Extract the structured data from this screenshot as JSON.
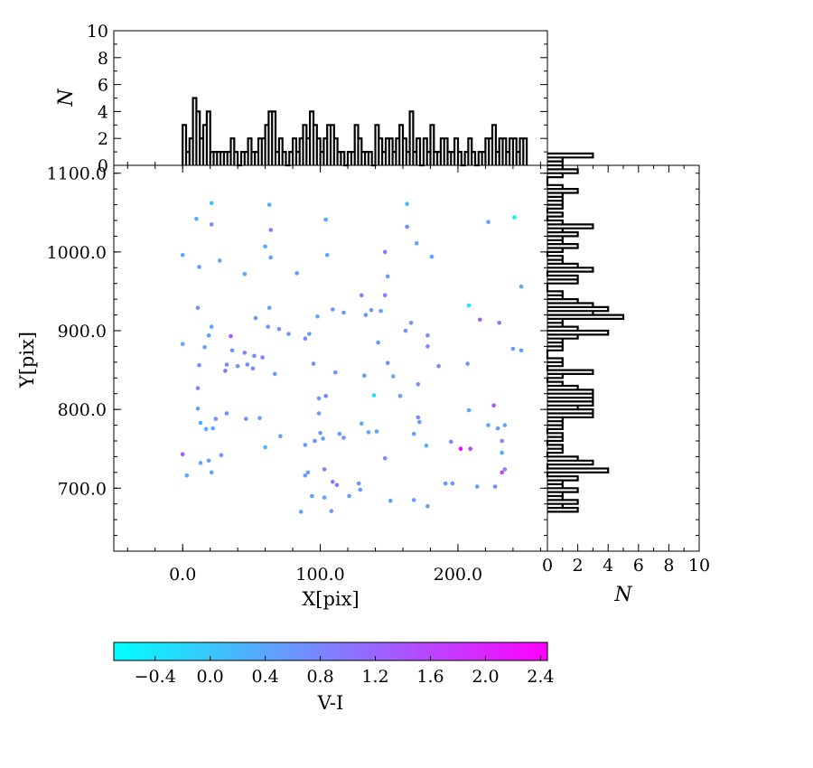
{
  "chart_data": [
    {
      "type": "scatter",
      "xlabel": "X[pix]",
      "ylabel": "Y[pix]",
      "xlim": [
        -50,
        265
      ],
      "ylim": [
        620,
        1110
      ],
      "xticks": [
        "0.0",
        "100.0",
        "200.0"
      ],
      "yticks": [
        "700.0",
        "800.0",
        "900.0",
        "1000.0",
        "1100.0"
      ],
      "color_by": "V-I",
      "colormap": "cool",
      "points": [
        [
          21,
          1062,
          0.0
        ],
        [
          63,
          1060,
          0.3
        ],
        [
          163,
          1061,
          0.1
        ],
        [
          241,
          1044,
          -0.5
        ],
        [
          10,
          1042,
          0.3
        ],
        [
          104,
          1041,
          0.4
        ],
        [
          222,
          1038,
          0.4
        ],
        [
          21,
          1035,
          0.7
        ],
        [
          163,
          1032,
          0.7
        ],
        [
          64,
          1028,
          0.9
        ],
        [
          60,
          1007,
          0.3
        ],
        [
          170,
          1011,
          0.5
        ],
        [
          0,
          996,
          0.4
        ],
        [
          64,
          993,
          0.5
        ],
        [
          105,
          996,
          0.4
        ],
        [
          147,
          1000,
          0.9
        ],
        [
          181,
          994,
          0.4
        ],
        [
          27,
          989,
          0.4
        ],
        [
          12,
          981,
          0.5
        ],
        [
          45,
          972,
          0.4
        ],
        [
          83,
          973,
          0.5
        ],
        [
          149,
          969,
          0.6
        ],
        [
          246,
          956,
          0.3
        ],
        [
          130,
          945,
          0.9
        ],
        [
          147,
          945,
          0.8
        ],
        [
          208,
          932,
          -0.5
        ],
        [
          11,
          929,
          0.7
        ],
        [
          63,
          929,
          0.5
        ],
        [
          109,
          927,
          0.6
        ],
        [
          117,
          923,
          0.6
        ],
        [
          133,
          920,
          0.5
        ],
        [
          137,
          926,
          0.6
        ],
        [
          144,
          925,
          0.5
        ],
        [
          230,
          910,
          0.9
        ],
        [
          216,
          914,
          1.2
        ],
        [
          53,
          916,
          0.6
        ],
        [
          98,
          918,
          0.3
        ],
        [
          21,
          905,
          0.4
        ],
        [
          62,
          905,
          0.6
        ],
        [
          70,
          902,
          0.7
        ],
        [
          77,
          896,
          0.6
        ],
        [
          89,
          890,
          0.7
        ],
        [
          92,
          896,
          0.5
        ],
        [
          162,
          900,
          0.7
        ],
        [
          166,
          910,
          0.6
        ],
        [
          178,
          894,
          0.7
        ],
        [
          19,
          894,
          0.5
        ],
        [
          35,
          893,
          1.4
        ],
        [
          0,
          883,
          0.4
        ],
        [
          16,
          879,
          0.5
        ],
        [
          36,
          875,
          0.6
        ],
        [
          45,
          872,
          0.8
        ],
        [
          52,
          868,
          0.7
        ],
        [
          58,
          866,
          0.8
        ],
        [
          142,
          885,
          0.5
        ],
        [
          178,
          880,
          0.7
        ],
        [
          240,
          877,
          0.5
        ],
        [
          246,
          875,
          0.5
        ],
        [
          12,
          856,
          0.7
        ],
        [
          32,
          857,
          0.8
        ],
        [
          40,
          855,
          0.6
        ],
        [
          47,
          857,
          0.7
        ],
        [
          51,
          852,
          0.8
        ],
        [
          67,
          845,
          0.5
        ],
        [
          31,
          849,
          1.1
        ],
        [
          95,
          858,
          0.7
        ],
        [
          111,
          847,
          0.6
        ],
        [
          149,
          859,
          0.7
        ],
        [
          186,
          855,
          0.8
        ],
        [
          207,
          858,
          0.6
        ],
        [
          132,
          843,
          0.5
        ],
        [
          153,
          842,
          0.4
        ],
        [
          11,
          827,
          0.8
        ],
        [
          171,
          832,
          0.7
        ],
        [
          139,
          818,
          -0.2
        ],
        [
          99,
          814,
          0.6
        ],
        [
          104,
          817,
          0.9
        ],
        [
          158,
          817,
          0.5
        ],
        [
          11,
          801,
          0.5
        ],
        [
          99,
          795,
          0.5
        ],
        [
          208,
          799,
          0.4
        ],
        [
          226,
          805,
          1.3
        ],
        [
          13,
          783,
          0.3
        ],
        [
          17,
          775,
          0.3
        ],
        [
          22,
          776,
          0.4
        ],
        [
          24,
          788,
          0.7
        ],
        [
          32,
          795,
          0.7
        ],
        [
          46,
          788,
          0.6
        ],
        [
          56,
          789,
          0.5
        ],
        [
          130,
          782,
          0.4
        ],
        [
          171,
          790,
          0.8
        ],
        [
          172,
          784,
          0.5
        ],
        [
          222,
          780,
          0.4
        ],
        [
          229,
          776,
          0.5
        ],
        [
          234,
          780,
          0.4
        ],
        [
          71,
          766,
          0.4
        ],
        [
          102,
          763,
          0.5
        ],
        [
          96,
          760,
          0.7
        ],
        [
          114,
          769,
          0.5
        ],
        [
          117,
          764,
          0.6
        ],
        [
          100,
          770,
          0.5
        ],
        [
          135,
          771,
          0.4
        ],
        [
          141,
          772,
          0.5
        ],
        [
          168,
          769,
          0.4
        ],
        [
          232,
          760,
          0.7
        ],
        [
          60,
          752,
          0.2
        ],
        [
          89,
          755,
          0.5
        ],
        [
          177,
          754,
          0.3
        ],
        [
          195,
          759,
          0.7
        ],
        [
          202,
          750,
          2.4
        ],
        [
          209,
          750,
          1.6
        ],
        [
          0,
          743,
          1.4
        ],
        [
          28,
          742,
          0.6
        ],
        [
          147,
          738,
          0.7
        ],
        [
          232,
          745,
          0.4
        ],
        [
          13,
          732,
          0.4
        ],
        [
          19,
          735,
          0.5
        ],
        [
          89,
          716,
          0.5
        ],
        [
          91,
          720,
          0.5
        ],
        [
          103,
          724,
          0.8
        ],
        [
          109,
          708,
          0.9
        ],
        [
          112,
          704,
          1.0
        ],
        [
          3,
          716,
          0.4
        ],
        [
          21,
          720,
          0.5
        ],
        [
          232,
          720,
          1.6
        ],
        [
          234,
          724,
          0.8
        ],
        [
          214,
          702,
          0.5
        ],
        [
          227,
          702,
          0.8
        ],
        [
          128,
          706,
          0.7
        ],
        [
          129,
          698,
          0.6
        ],
        [
          196,
          706,
          0.6
        ],
        [
          191,
          706,
          0.6
        ],
        [
          94,
          690,
          0.5
        ],
        [
          103,
          688,
          0.4
        ],
        [
          121,
          690,
          0.5
        ],
        [
          151,
          684,
          0.5
        ],
        [
          168,
          685,
          0.5
        ],
        [
          178,
          677,
          0.6
        ],
        [
          86,
          670,
          0.4
        ],
        [
          108,
          671,
          0.6
        ]
      ]
    },
    {
      "type": "bar",
      "orientation": "vertical",
      "ylabel": "N",
      "ylim": [
        0,
        10
      ],
      "yticks": [
        "0",
        "2",
        "4",
        "6",
        "8",
        "10"
      ],
      "bin_start": 0,
      "bin_width": 2.5,
      "values": [
        3,
        1,
        2,
        5,
        4,
        2,
        3,
        4,
        1,
        1,
        1,
        1,
        1,
        1,
        2,
        1,
        0,
        1,
        1,
        2,
        1,
        1,
        2,
        2,
        3,
        4,
        4,
        1,
        2,
        1,
        0,
        1,
        2,
        1,
        2,
        3,
        2,
        4,
        3,
        2,
        1,
        2,
        3,
        3,
        2,
        1,
        1,
        0,
        1,
        1,
        3,
        2,
        1,
        1,
        1,
        0,
        3,
        2,
        1,
        2,
        2,
        1,
        2,
        3,
        2,
        1,
        4,
        1,
        2,
        0,
        2,
        1,
        3,
        1,
        1,
        2,
        2,
        1,
        1,
        2,
        1,
        0,
        1,
        2,
        1,
        0,
        1,
        1,
        2,
        2,
        3,
        1,
        2,
        2,
        1,
        2,
        2,
        1,
        2,
        2
      ]
    },
    {
      "type": "bar",
      "orientation": "horizontal",
      "xlabel": "N",
      "xlim": [
        0,
        10
      ],
      "xticks": [
        "0",
        "2",
        "4",
        "6",
        "8",
        "10"
      ],
      "bin_start": 670,
      "bin_width": 5,
      "values": [
        2,
        1,
        2,
        1,
        1,
        2,
        1,
        1,
        2,
        0,
        4,
        0,
        3,
        2,
        0,
        1,
        1,
        0,
        1,
        1,
        0,
        1,
        1,
        1,
        3,
        3,
        2,
        3,
        3,
        3,
        3,
        2,
        1,
        0,
        1,
        3,
        0,
        1,
        1,
        0,
        0,
        1,
        1,
        1,
        2,
        4,
        2,
        1,
        1,
        5,
        3,
        4,
        3,
        2,
        1,
        1,
        0,
        0,
        2,
        2,
        0,
        3,
        2,
        1,
        1,
        0,
        1,
        2,
        1,
        1,
        2,
        1,
        3,
        1,
        0,
        1,
        0,
        1,
        1,
        1,
        1,
        2,
        1,
        0,
        0,
        1,
        2,
        1,
        1,
        1,
        3
      ]
    },
    {
      "type": "heatmap",
      "role": "colorbar",
      "xlabel": "V-I",
      "range": [
        -0.7,
        2.45
      ],
      "ticks": [
        "−0.4",
        "0.0",
        "0.4",
        "0.8",
        "1.2",
        "1.6",
        "2.0",
        "2.4"
      ],
      "color_low": "#00ffff",
      "color_high": "#ff00ff"
    }
  ]
}
